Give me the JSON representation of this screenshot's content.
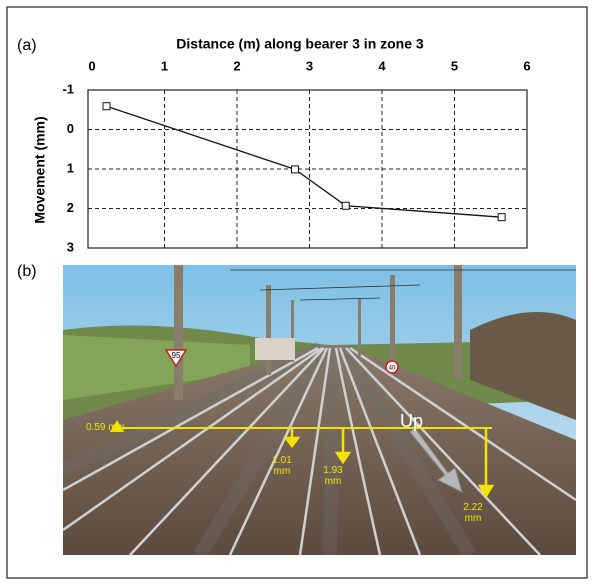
{
  "panel_labels": [
    "(a)",
    "(b)"
  ],
  "chart_data": {
    "type": "line",
    "xlabel": "Distance (m) along bearer 3 in zone 3",
    "ylabel": "Movement (mm)",
    "x": [
      0.2,
      2.8,
      3.5,
      5.65
    ],
    "values": [
      -0.59,
      1.01,
      1.93,
      2.22
    ],
    "color": "#111111",
    "marker": "square",
    "xlim": [
      0,
      6
    ],
    "xticks": [
      0,
      1,
      2,
      3,
      4,
      5,
      6
    ],
    "ylim": [
      -1,
      3
    ],
    "yticks": [
      -1,
      0,
      1,
      2,
      3
    ],
    "y_reversed": true,
    "x_axis_position": "top",
    "grid": true
  },
  "photo": {
    "labels": [
      "0.59 mm",
      "1.01 mm",
      "1.93 mm",
      "2.22 mm"
    ],
    "direction": "Up",
    "signs": [
      "95",
      "40"
    ]
  }
}
